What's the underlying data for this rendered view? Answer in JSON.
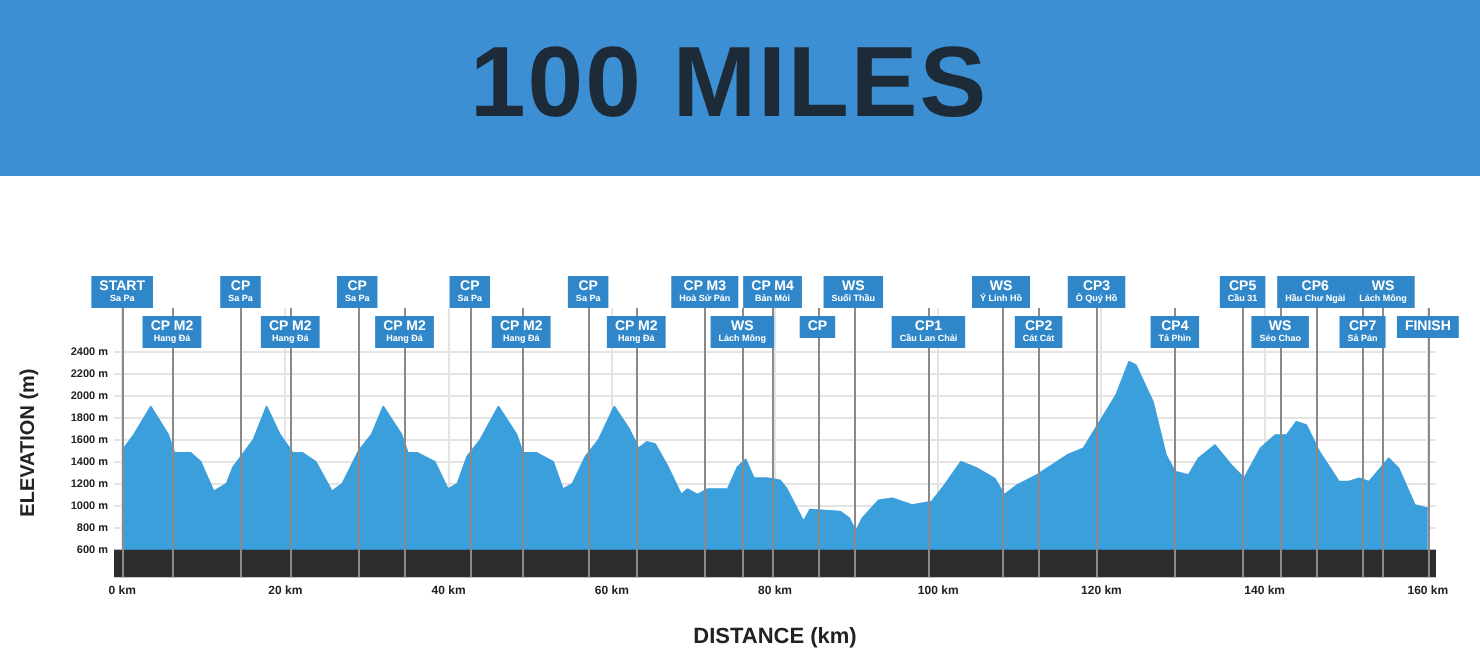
{
  "chart_data": {
    "type": "area",
    "title": "100 MILES",
    "xlabel": "DISTANCE (km)",
    "ylabel": "ELEVATION (m)",
    "x": [
      0,
      1.5,
      3.5,
      5.6,
      6.4,
      8.4,
      9.6,
      11.2,
      12.8,
      13.6,
      16.1,
      17.7,
      19.3,
      20.9,
      22.1,
      23.7,
      25.7,
      27,
      29,
      30.6,
      32,
      34.2,
      35,
      36.2,
      38.3,
      39.9,
      41.1,
      42.3,
      43.9,
      46.1,
      48.3,
      49.1,
      50.8,
      52.8,
      54,
      55.2,
      56.8,
      58.4,
      60.3,
      62.1,
      63.3,
      64.3,
      65.3,
      66.9,
      68.5,
      69.3,
      70.5,
      71.7,
      74.2,
      75.4,
      76.4,
      77.4,
      79,
      80.6,
      81.4,
      83.5,
      84.3,
      88,
      89.1,
      89.9,
      90.7,
      92.7,
      94.4,
      96.8,
      99.2,
      100.8,
      102.8,
      104.8,
      106.9,
      108.1,
      109.7,
      112.1,
      115.8,
      117.8,
      119.8,
      121.8,
      123.4,
      124.2,
      126.3,
      127.9,
      129,
      130.7,
      131.9,
      133.9,
      135.9,
      137.5,
      139.5,
      141.3,
      142.7,
      143.9,
      145.1,
      146.7,
      149.1,
      150.3,
      151.6,
      152.8,
      155.2,
      156.4,
      158.4,
      160
    ],
    "series": [
      {
        "color": "#3b9fdc",
        "values": [
          1500,
          1650,
          1900,
          1650,
          1480,
          1480,
          1400,
          1130,
          1200,
          1350,
          1600,
          1900,
          1650,
          1480,
          1480,
          1400,
          1130,
          1200,
          1500,
          1650,
          1900,
          1650,
          1480,
          1480,
          1400,
          1150,
          1200,
          1450,
          1600,
          1900,
          1650,
          1480,
          1480,
          1400,
          1150,
          1200,
          1450,
          1600,
          1900,
          1700,
          1520,
          1580,
          1560,
          1350,
          1100,
          1150,
          1100,
          1150,
          1150,
          1350,
          1420,
          1250,
          1250,
          1230,
          1158,
          855,
          964,
          945,
          885,
          764,
          885,
          1048,
          1067,
          1006,
          1036,
          1188,
          1400,
          1339,
          1248,
          1097,
          1188,
          1279,
          1460,
          1521,
          1764,
          2006,
          2309,
          2279,
          1945,
          1460,
          1309,
          1279,
          1430,
          1551,
          1370,
          1248,
          1521,
          1642,
          1642,
          1764,
          1733,
          1491,
          1218,
          1218,
          1248,
          1218,
          1430,
          1339,
          1006,
          976
        ]
      }
    ],
    "xlim": [
      -1,
      161
    ],
    "xticks": [
      {
        "value": 0,
        "label": "0 km"
      },
      {
        "value": 20,
        "label": "20 km"
      },
      {
        "value": 40,
        "label": "40 km"
      },
      {
        "value": 60,
        "label": "60 km"
      },
      {
        "value": 80,
        "label": "80 km"
      },
      {
        "value": 100,
        "label": "100 km"
      },
      {
        "value": 120,
        "label": "120 km"
      },
      {
        "value": 140,
        "label": "140 km"
      },
      {
        "value": 160,
        "label": "160 km"
      }
    ],
    "ylim": [
      350,
      2800
    ],
    "yticks": [
      {
        "value": 600,
        "label": "600 m"
      },
      {
        "value": 800,
        "label": "800 m"
      },
      {
        "value": 1000,
        "label": "1000 m"
      },
      {
        "value": 1200,
        "label": "1200 m"
      },
      {
        "value": 1400,
        "label": "1400 m"
      },
      {
        "value": 1600,
        "label": "1600 m"
      },
      {
        "value": 1800,
        "label": "1800 m"
      },
      {
        "value": 2000,
        "label": "2000 m"
      },
      {
        "value": 2200,
        "label": "2200 m"
      },
      {
        "value": 2400,
        "label": "2400 m"
      }
    ],
    "grid": true,
    "legend": false,
    "bands": [
      {
        "axis": "y",
        "from": 350,
        "to": 600,
        "color": "#2d2d2d"
      }
    ],
    "ref_lines": [
      {
        "axis": "x",
        "value": 0,
        "label": "START\nSa Pa"
      },
      {
        "axis": "x",
        "value": 6.1,
        "label": "CP M2\nHang Đá"
      },
      {
        "axis": "x",
        "value": 14.5,
        "label": "CP\nSa Pa"
      },
      {
        "axis": "x",
        "value": 20.6,
        "label": "CP M2\nHang Đá"
      },
      {
        "axis": "x",
        "value": 28.8,
        "label": "CP\nSa Pa"
      },
      {
        "axis": "x",
        "value": 34.6,
        "label": "CP M2\nHang Đá"
      },
      {
        "axis": "x",
        "value": 42.6,
        "label": "CP\nSa Pa"
      },
      {
        "axis": "x",
        "value": 48.9,
        "label": "CP M2\nHang Đá"
      },
      {
        "axis": "x",
        "value": 57.1,
        "label": "CP\nSa Pa"
      },
      {
        "axis": "x",
        "value": 63,
        "label": "CP M2\nHang Đá"
      },
      {
        "axis": "x",
        "value": 71.4,
        "label": "CP M3\nHoà Sử Pán"
      },
      {
        "axis": "x",
        "value": 76,
        "label": "WS\nLách Mông"
      },
      {
        "axis": "x",
        "value": 79.7,
        "label": "CP M4\nBản Mòi"
      },
      {
        "axis": "x",
        "value": 85.2,
        "label": "CP"
      },
      {
        "axis": "x",
        "value": 89.6,
        "label": "WS\nSuối Thầu"
      },
      {
        "axis": "x",
        "value": 98.8,
        "label": "CP1\nCầu Lan Chải"
      },
      {
        "axis": "x",
        "value": 107.7,
        "label": "WS\nÝ Linh Hồ"
      },
      {
        "axis": "x",
        "value": 112.3,
        "label": "CP2\nCát Cát"
      },
      {
        "axis": "x",
        "value": 119.4,
        "label": "CP3\nÔ Quý Hồ"
      },
      {
        "axis": "x",
        "value": 129,
        "label": "CP4\nTả Phìn"
      },
      {
        "axis": "x",
        "value": 137.3,
        "label": "CP5\nCầu 31"
      },
      {
        "axis": "x",
        "value": 141.9,
        "label": "WS\nSéo Chao"
      },
      {
        "axis": "x",
        "value": 146.2,
        "label": "CP6\nHầu Chư Ngài"
      },
      {
        "axis": "x",
        "value": 152,
        "label": "CP7\nSả Pán"
      },
      {
        "axis": "x",
        "value": 154.5,
        "label": "WS\nLách Mông"
      },
      {
        "axis": "x",
        "value": 160,
        "label": "FINISH"
      }
    ]
  }
}
